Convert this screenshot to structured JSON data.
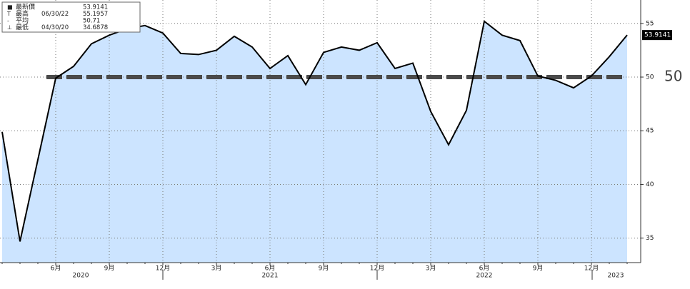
{
  "chart_data": {
    "type": "area",
    "categories": [
      null,
      null,
      null,
      "6月",
      null,
      null,
      "9月",
      null,
      null,
      "12月",
      null,
      null,
      "3月",
      null,
      null,
      "6月",
      null,
      null,
      "9月",
      null,
      null,
      "12月",
      null,
      null,
      "3月",
      null,
      null,
      "6月",
      null,
      null,
      "9月",
      null,
      null,
      "12月",
      null,
      null
    ],
    "years": [
      "2020",
      "2021",
      "2022",
      "2023"
    ],
    "series": [
      {
        "name": "最新價",
        "color": "#000000",
        "fill": "#cce4ff",
        "values": [
          44.9,
          34.6878,
          42.3,
          49.9,
          51.0,
          53.1,
          53.9,
          54.5,
          54.8,
          54.1,
          52.2,
          52.1,
          52.5,
          53.8,
          52.8,
          50.8,
          52.0,
          49.3,
          52.3,
          52.8,
          52.5,
          53.2,
          50.8,
          51.3,
          46.8,
          43.7,
          46.9,
          55.1957,
          53.9,
          53.4,
          50.1,
          49.7,
          49.0,
          50.1,
          51.9,
          53.9141
        ]
      }
    ],
    "reference_line": {
      "value": 50,
      "label": "50",
      "color": "#4a4a4a"
    },
    "last_value_label": "53.9141",
    "stats": [
      {
        "name": "最新價",
        "date": null,
        "value": "53.9141"
      },
      {
        "name": "最高",
        "date": "06/30/22",
        "value": "55.1957"
      },
      {
        "name": "平均",
        "date": null,
        "value": "50.71"
      },
      {
        "name": "最低",
        "date": "04/30/20",
        "value": "34.6878"
      }
    ],
    "ylim": [
      32.72,
      57.18
    ],
    "yticks": [
      35,
      40,
      45,
      50,
      55
    ],
    "grid": true
  }
}
